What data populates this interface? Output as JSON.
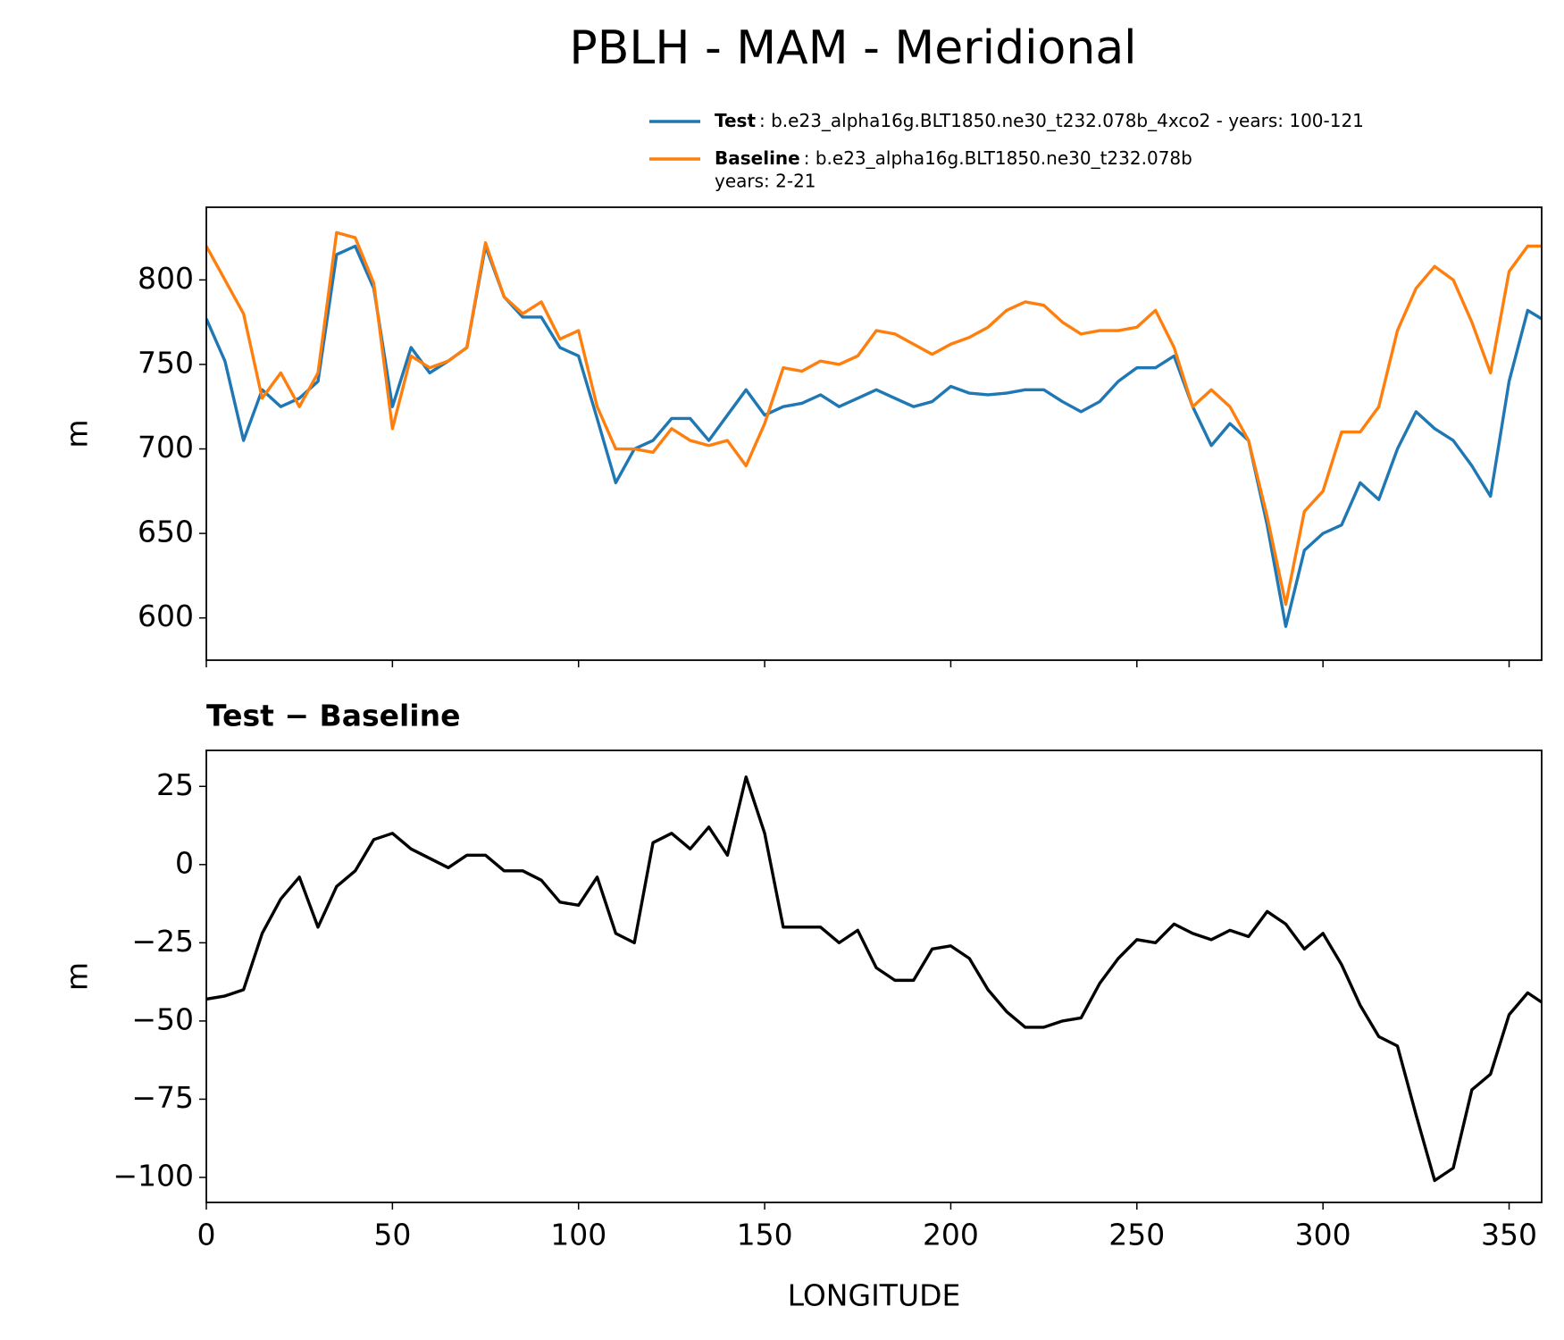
{
  "title": "PBLH - MAM - Meridional",
  "chart_data": [
    {
      "type": "line",
      "ylabel": "m",
      "legend": "upper right",
      "show_xtick_labels": false,
      "x": [
        0,
        5,
        10,
        15,
        20,
        25,
        30,
        35,
        40,
        45,
        50,
        55,
        60,
        65,
        70,
        75,
        80,
        85,
        90,
        95,
        100,
        105,
        110,
        115,
        120,
        125,
        130,
        135,
        140,
        145,
        150,
        155,
        160,
        165,
        170,
        175,
        180,
        185,
        190,
        195,
        200,
        205,
        210,
        215,
        220,
        225,
        230,
        235,
        240,
        245,
        250,
        255,
        260,
        265,
        270,
        275,
        280,
        285,
        290,
        295,
        300,
        305,
        310,
        315,
        320,
        325,
        330,
        335,
        340,
        345,
        350,
        355,
        358.75
      ],
      "series": [
        {
          "name": "Test",
          "detail": [
            ": b.e23_alpha16g.BLT1850.ne30_t232.078b_4xco2 - years: 100-121"
          ],
          "color": "#1f77b4",
          "values": [
            777,
            752,
            705,
            735,
            725,
            730,
            740,
            815,
            820,
            795,
            725,
            760,
            745,
            752,
            760,
            820,
            790,
            778,
            778,
            760,
            755,
            718,
            680,
            700,
            705,
            718,
            718,
            705,
            720,
            735,
            720,
            725,
            727,
            732,
            725,
            730,
            735,
            730,
            725,
            728,
            737,
            733,
            732,
            733,
            735,
            735,
            728,
            722,
            728,
            740,
            748,
            748,
            755,
            725,
            702,
            715,
            705,
            655,
            595,
            640,
            650,
            655,
            680,
            670,
            700,
            722,
            712,
            705,
            690,
            672,
            740,
            782,
            777
          ]
        },
        {
          "name": "Baseline",
          "detail": [
            ": b.e23_alpha16g.BLT1850.ne30_t232.078b",
            "years: 2-21"
          ],
          "color": "#ff7f0e",
          "values": [
            820,
            800,
            780,
            730,
            745,
            725,
            745,
            828,
            825,
            798,
            712,
            755,
            748,
            752,
            760,
            822,
            790,
            780,
            787,
            765,
            770,
            725,
            700,
            700,
            698,
            712,
            705,
            702,
            705,
            690,
            715,
            748,
            746,
            752,
            750,
            755,
            770,
            768,
            762,
            756,
            762,
            766,
            772,
            782,
            787,
            785,
            775,
            768,
            770,
            770,
            772,
            782,
            760,
            725,
            735,
            725,
            705,
            660,
            608,
            663,
            675,
            710,
            710,
            725,
            770,
            795,
            808,
            800,
            775,
            745,
            805,
            820,
            820
          ]
        }
      ],
      "xlim": [
        0,
        358.75
      ],
      "xticks": [
        0,
        50,
        100,
        150,
        200,
        250,
        300,
        350
      ],
      "ylim": [
        575,
        843
      ],
      "yticks": [
        600,
        650,
        700,
        750,
        800
      ]
    },
    {
      "type": "line",
      "subtitle": "Test − Baseline",
      "ylabel": "m",
      "xlabel": "LONGITUDE",
      "show_xtick_labels": true,
      "x": [
        0,
        5,
        10,
        15,
        20,
        25,
        30,
        35,
        40,
        45,
        50,
        55,
        60,
        65,
        70,
        75,
        80,
        85,
        90,
        95,
        100,
        105,
        110,
        115,
        120,
        125,
        130,
        135,
        140,
        145,
        150,
        155,
        160,
        165,
        170,
        175,
        180,
        185,
        190,
        195,
        200,
        205,
        210,
        215,
        220,
        225,
        230,
        235,
        240,
        245,
        250,
        255,
        260,
        265,
        270,
        275,
        280,
        285,
        290,
        295,
        300,
        305,
        310,
        315,
        320,
        325,
        330,
        335,
        340,
        345,
        350,
        355,
        358.75
      ],
      "series": [
        {
          "color": "#000000",
          "values": [
            -43,
            -42,
            -40,
            -22,
            -11,
            -4,
            -20,
            -7,
            -2,
            8,
            10,
            5,
            2,
            -1,
            3,
            3,
            -2,
            -2,
            -5,
            -12,
            -13,
            -4,
            -22,
            -25,
            7,
            10,
            5,
            12,
            3,
            28,
            10,
            -20,
            -20,
            -20,
            -25,
            -21,
            -33,
            -37,
            -37,
            -27,
            -26,
            -30,
            -40,
            -47,
            -52,
            -52,
            -50,
            -49,
            -38,
            -30,
            -24,
            -25,
            -19,
            -22,
            -24,
            -21,
            -23,
            -15,
            -19,
            -27,
            -22,
            -32,
            -45,
            -55,
            -58,
            -80,
            -101,
            -97,
            -72,
            -67,
            -48,
            -41,
            -44
          ]
        }
      ],
      "xlim": [
        0,
        358.75
      ],
      "xticks": [
        0,
        50,
        100,
        150,
        200,
        250,
        300,
        350
      ],
      "ylim": [
        -108,
        36.5
      ],
      "yticks": [
        {
          "value": -100,
          "label": "−100"
        },
        {
          "value": -75,
          "label": "−75"
        },
        {
          "value": -50,
          "label": "−50"
        },
        {
          "value": -25,
          "label": "−25"
        },
        0,
        25
      ]
    }
  ]
}
